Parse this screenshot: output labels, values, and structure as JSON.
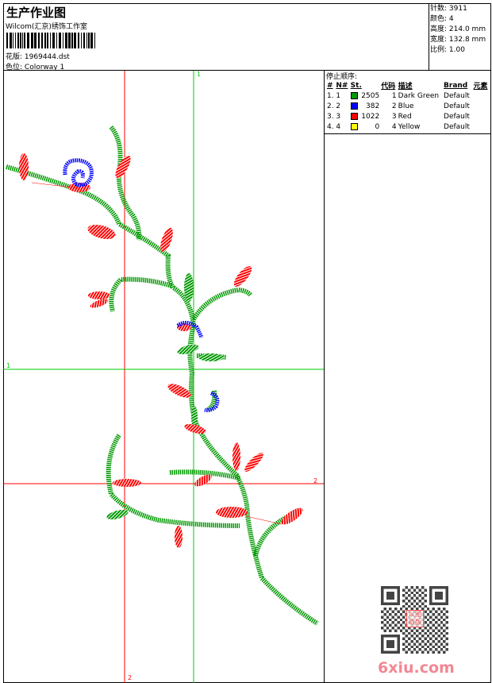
{
  "header": {
    "title": "生产作业图",
    "studio": "Wilcom(汇京)绣饰工作室",
    "design_file_label": "花版:",
    "design_file": "1969444.dst",
    "colorway_label": "色位:",
    "colorway": "Colorway 1"
  },
  "stats": [
    {
      "label": "针数:",
      "value": "3911"
    },
    {
      "label": "颜色:",
      "value": "4"
    },
    {
      "label": "高度:",
      "value": "214.0 mm"
    },
    {
      "label": "宽度:",
      "value": "132.8 mm"
    },
    {
      "label": "比例:",
      "value": "1.00"
    }
  ],
  "stop_sequence": {
    "title": "停止顺序:",
    "columns": [
      "#",
      "N#",
      "St.",
      "代码",
      "描述",
      "Brand",
      "元素"
    ],
    "rows": [
      {
        "idx": "1.",
        "n": "1",
        "color": "#009900",
        "st": "2505",
        "code": "1",
        "desc": "Dark Green",
        "brand": "Default"
      },
      {
        "idx": "2.",
        "n": "2",
        "color": "#0000ff",
        "st": "382",
        "code": "2",
        "desc": "Blue",
        "brand": "Default"
      },
      {
        "idx": "3.",
        "n": "3",
        "color": "#ff0000",
        "st": "1022",
        "code": "3",
        "desc": "Red",
        "brand": "Default"
      },
      {
        "idx": "4.",
        "n": "4",
        "color": "#ffff00",
        "st": "0",
        "code": "4",
        "desc": "Yellow",
        "brand": "Default"
      }
    ]
  },
  "guides": {
    "green_label": "1",
    "red_label": "2",
    "green": "#00cc00",
    "red": "#ff0000"
  },
  "watermark": {
    "text": "6xiu.com",
    "stamp": "以图取版"
  }
}
